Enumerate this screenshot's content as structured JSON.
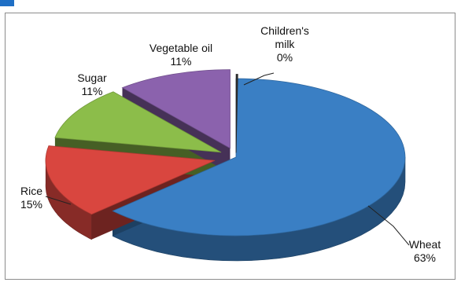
{
  "chart_data": {
    "type": "pie",
    "style": "3d-exploded",
    "title": "",
    "categories": [
      "Wheat",
      "Rice",
      "Sugar",
      "Vegetable oil",
      "Children's milk"
    ],
    "values": [
      63,
      15,
      11,
      11,
      0
    ],
    "labels": [
      {
        "name": "Wheat",
        "pct": "63%"
      },
      {
        "name": "Rice",
        "pct": "15%"
      },
      {
        "name": "Sugar",
        "pct": "11%"
      },
      {
        "name": "Vegetable oil",
        "pct": "11%"
      },
      {
        "name": "Children's milk",
        "pct": "0%"
      }
    ],
    "colors": [
      "#3a7fc4",
      "#d9463f",
      "#8cbd4a",
      "#8b62ad",
      "#2f2f2f"
    ],
    "legend": "none"
  }
}
